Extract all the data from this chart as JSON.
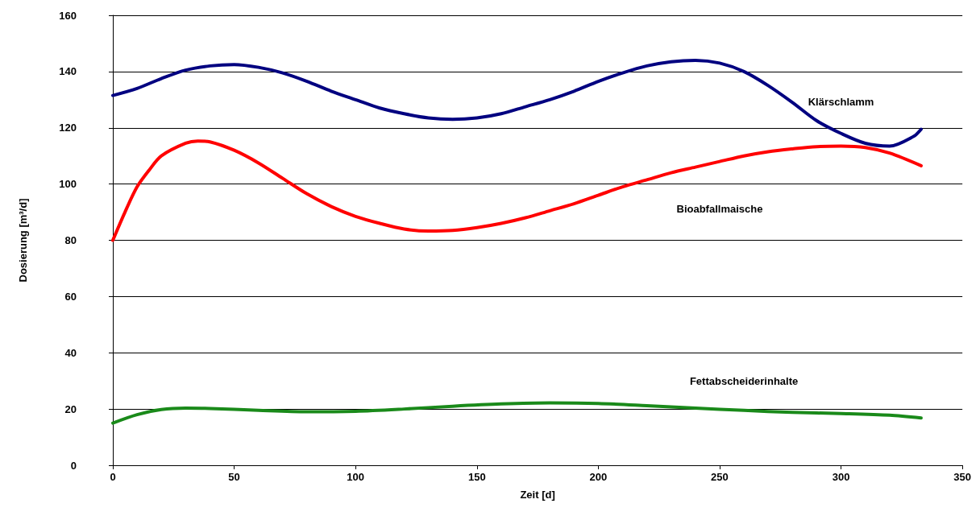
{
  "chart_data": {
    "type": "line",
    "xlabel": "Zeit [d]",
    "ylabel": "Dosierung [m³/d]",
    "xlim": [
      0,
      350
    ],
    "xticks": [
      0,
      50,
      100,
      150,
      200,
      250,
      300,
      350
    ],
    "ylim": [
      0,
      160
    ],
    "yticks": [
      0,
      20,
      40,
      60,
      80,
      100,
      120,
      140,
      160
    ],
    "grid": "y",
    "legend": false,
    "marker": "none",
    "line_style": "solid",
    "series": [
      {
        "name": "Klärschlamm",
        "color": "#000080",
        "x": [
          0,
          10,
          20,
          30,
          40,
          50,
          60,
          70,
          80,
          90,
          100,
          110,
          120,
          130,
          140,
          150,
          160,
          170,
          180,
          190,
          200,
          210,
          220,
          230,
          240,
          250,
          260,
          270,
          280,
          290,
          300,
          310,
          320,
          330,
          333
        ],
        "values": [
          131.5,
          134,
          137.5,
          140.5,
          142,
          142.5,
          141.5,
          139.5,
          136.5,
          133,
          130,
          127,
          125,
          123.5,
          123,
          123.5,
          125,
          127.5,
          130,
          133,
          136.5,
          139.5,
          142,
          143.5,
          144,
          143,
          140,
          135,
          129,
          122.5,
          118,
          114.5,
          113.5,
          117,
          119.5
        ]
      },
      {
        "name": "Bioabfallmaische",
        "color": "#ff0000",
        "x": [
          0,
          5,
          10,
          15,
          20,
          30,
          35,
          40,
          50,
          60,
          70,
          80,
          90,
          100,
          110,
          120,
          130,
          140,
          150,
          160,
          170,
          180,
          190,
          200,
          210,
          220,
          230,
          240,
          250,
          260,
          270,
          280,
          290,
          300,
          310,
          320,
          333
        ],
        "values": [
          80,
          90,
          99,
          105,
          110,
          114.5,
          115.3,
          115,
          112,
          107.5,
          102,
          96.5,
          92,
          88.5,
          86,
          84,
          83.3,
          83.5,
          84.5,
          86,
          88,
          90.5,
          93,
          96,
          99,
          101.5,
          104,
          106,
          108,
          110,
          111.5,
          112.5,
          113.3,
          113.5,
          113,
          111,
          106.5
        ]
      },
      {
        "name": "Fettabscheiderinhalte",
        "color": "#1a8a1a",
        "x": [
          0,
          10,
          20,
          30,
          40,
          60,
          80,
          100,
          120,
          140,
          160,
          180,
          200,
          220,
          240,
          260,
          280,
          300,
          320,
          333
        ],
        "values": [
          15,
          18,
          19.8,
          20.3,
          20.2,
          19.5,
          19,
          19.2,
          20,
          21,
          21.8,
          22.2,
          22,
          21.2,
          20.3,
          19.5,
          18.8,
          18.4,
          17.8,
          16.8
        ]
      }
    ]
  }
}
